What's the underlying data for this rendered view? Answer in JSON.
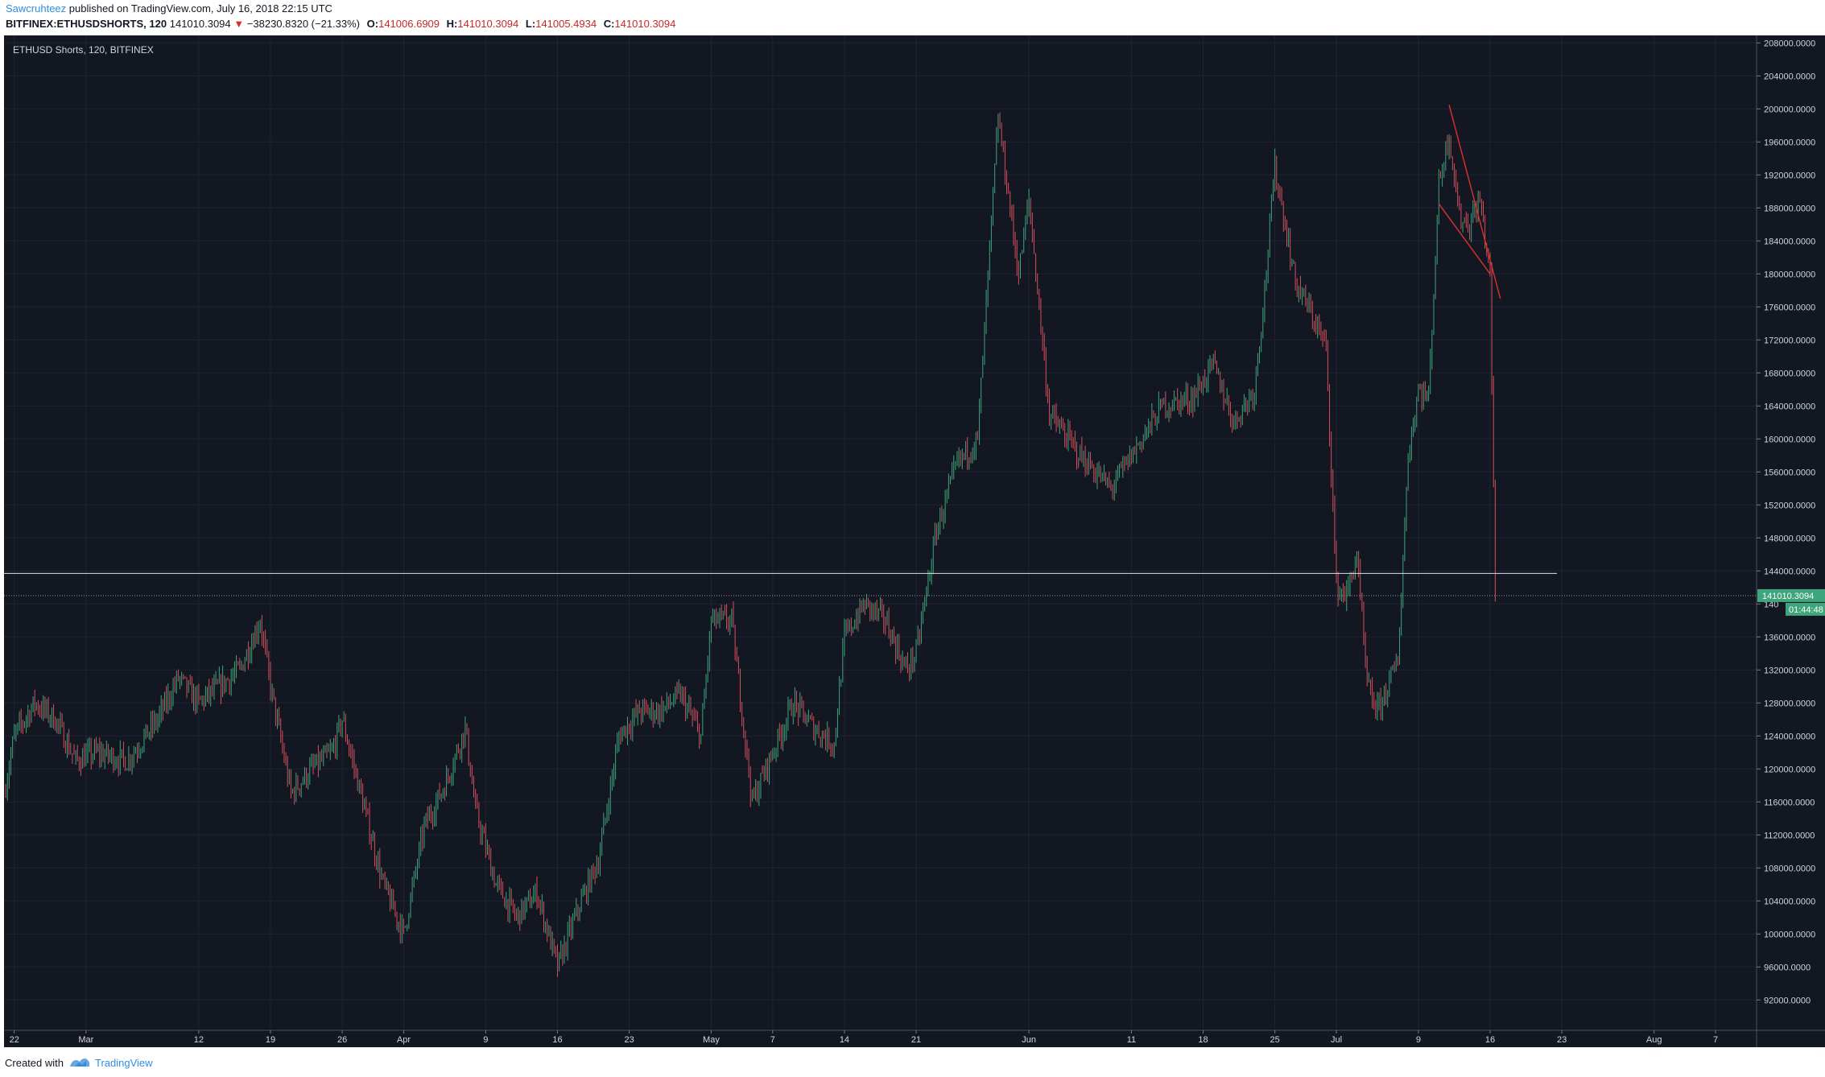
{
  "header": {
    "author": "Sawcruhteez",
    "published_text": "published on TradingView.com, July 16, 2018 22:15 UTC",
    "symbol": "BITFINEX:ETHUSDSHORTS",
    "interval": "120",
    "last": "141010.3094",
    "change_arrow": "▼",
    "change": "−38230.8320 (−21.33%)",
    "o_label": "O:",
    "o_value": "141006.6909",
    "h_label": "H:",
    "h_value": "141010.3094",
    "l_label": "L:",
    "l_value": "141005.4934",
    "c_label": "C:",
    "c_value": "141010.3094"
  },
  "legend": {
    "title": "ETHUSD Shorts, 120, BITFINEX"
  },
  "price_scale": {
    "ticks": [
      "208000.0000",
      "204000.0000",
      "200000.0000",
      "196000.0000",
      "192000.0000",
      "188000.0000",
      "184000.0000",
      "180000.0000",
      "176000.0000",
      "172000.0000",
      "168000.0000",
      "164000.0000",
      "160000.0000",
      "156000.0000",
      "152000.0000",
      "148000.0000",
      "144000.0000",
      "140",
      "136000.0000",
      "132000.0000",
      "128000.0000",
      "124000.0000",
      "120000.0000",
      "116000.0000",
      "112000.0000",
      "108000.0000",
      "104000.0000",
      "100000.0000",
      "96000.0000",
      "92000.0000"
    ],
    "last_price_label": "141010.3094",
    "countdown_label": "01:44:48"
  },
  "time_scale": {
    "ticks": [
      "22",
      "Mar",
      "12",
      "19",
      "26",
      "Apr",
      "9",
      "16",
      "23",
      "May",
      "7",
      "14",
      "21",
      "Jun",
      "11",
      "18",
      "25",
      "Jul",
      "9",
      "16",
      "23",
      "Aug",
      "7"
    ]
  },
  "chart_data": {
    "type": "candlestick",
    "symbol": "ETHUSD Shorts",
    "interval": "120",
    "exchange": "BITFINEX",
    "ylim": [
      89000,
      210000
    ],
    "xlim": [
      "2018-02-21",
      "2018-08-11"
    ],
    "horizontal_line": 143700,
    "last_price": 141010.3094,
    "drawings": {
      "falling_wedge_lines": [
        [
          [
            "2018-07-12",
            200500
          ],
          [
            "2018-07-17",
            177000
          ]
        ],
        [
          [
            "2018-07-11",
            188500
          ],
          [
            "2018-07-16",
            180000
          ]
        ]
      ]
    },
    "series": [
      {
        "name": "ETHUSD Shorts",
        "x": [
          "2018-02-21",
          "2018-02-22",
          "2018-02-24",
          "2018-02-26",
          "2018-02-28",
          "2018-03-02",
          "2018-03-05",
          "2018-03-08",
          "2018-03-10",
          "2018-03-12",
          "2018-03-14",
          "2018-03-16",
          "2018-03-18",
          "2018-03-19",
          "2018-03-21",
          "2018-03-23",
          "2018-03-25",
          "2018-03-26",
          "2018-03-28",
          "2018-03-30",
          "2018-04-01",
          "2018-04-03",
          "2018-04-05",
          "2018-04-07",
          "2018-04-08",
          "2018-04-10",
          "2018-04-12",
          "2018-04-14",
          "2018-04-16",
          "2018-04-18",
          "2018-04-20",
          "2018-04-22",
          "2018-04-24",
          "2018-04-26",
          "2018-04-28",
          "2018-04-30",
          "2018-05-01",
          "2018-05-03",
          "2018-05-05",
          "2018-05-07",
          "2018-05-09",
          "2018-05-11",
          "2018-05-13",
          "2018-05-14",
          "2018-05-16",
          "2018-05-18",
          "2018-05-20",
          "2018-05-21",
          "2018-05-23",
          "2018-05-25",
          "2018-05-27",
          "2018-05-29",
          "2018-05-31",
          "2018-06-01",
          "2018-06-03",
          "2018-06-06",
          "2018-06-09",
          "2018-06-12",
          "2018-06-14",
          "2018-06-17",
          "2018-06-19",
          "2018-06-21",
          "2018-06-23",
          "2018-06-24",
          "2018-06-25",
          "2018-06-27",
          "2018-06-29",
          "2018-06-30",
          "2018-07-01",
          "2018-07-02",
          "2018-07-03",
          "2018-07-04",
          "2018-07-05",
          "2018-07-07",
          "2018-07-08",
          "2018-07-09",
          "2018-07-10",
          "2018-07-11",
          "2018-07-12",
          "2018-07-13",
          "2018-07-14",
          "2018-07-15",
          "2018-07-16",
          "2018-07-16"
        ],
        "values": [
          117000,
          124000,
          128000,
          126000,
          121000,
          122000,
          121000,
          126000,
          131000,
          128000,
          130000,
          132000,
          138000,
          130000,
          117000,
          120000,
          122000,
          126000,
          116000,
          106000,
          100000,
          113000,
          118000,
          125000,
          115000,
          106000,
          102000,
          105000,
          96000,
          103000,
          109000,
          124000,
          127000,
          127000,
          129000,
          124000,
          138000,
          138000,
          116000,
          122000,
          128000,
          125000,
          123000,
          136000,
          140000,
          138000,
          132000,
          134000,
          149000,
          157000,
          160000,
          199000,
          180000,
          189000,
          163000,
          158000,
          154000,
          160000,
          164000,
          165000,
          169000,
          162000,
          166000,
          178000,
          193000,
          179000,
          174000,
          171000,
          142000,
          141000,
          146000,
          130000,
          127000,
          133000,
          158000,
          166000,
          165000,
          191000,
          197000,
          187000,
          186000,
          189000,
          180000,
          141010
        ]
      }
    ]
  }
}
